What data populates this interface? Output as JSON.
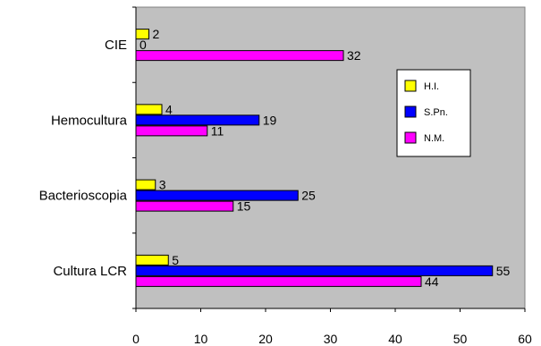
{
  "chart_data": {
    "type": "bar",
    "orientation": "horizontal",
    "categories": [
      "Cultura LCR",
      "Bacterioscopia",
      "Hemocultura",
      "CIE"
    ],
    "series": [
      {
        "name": "H.I.",
        "color": "#ffff00",
        "values": [
          5,
          3,
          4,
          2
        ]
      },
      {
        "name": "S.Pn.",
        "color": "#0000ff",
        "values": [
          55,
          25,
          19,
          0
        ]
      },
      {
        "name": "N.M.",
        "color": "#ff00ff",
        "values": [
          44,
          15,
          11,
          32
        ]
      }
    ],
    "xlim": [
      0,
      60
    ],
    "xticks": [
      0,
      10,
      20,
      30,
      40,
      50,
      60
    ],
    "plot_background": "#c0c0c0",
    "grid": false,
    "data_labels": true,
    "legend_position": "right"
  }
}
